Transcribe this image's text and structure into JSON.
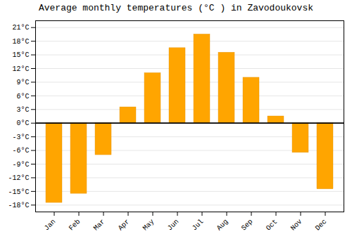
{
  "chart_data": {
    "type": "bar",
    "title": "Average monthly temperatures (°C ) in Zavodoukovsk",
    "categories": [
      "Jan",
      "Feb",
      "Mar",
      "Apr",
      "May",
      "Jun",
      "Jul",
      "Aug",
      "Sep",
      "Oct",
      "Nov",
      "Dec"
    ],
    "values": [
      -17.5,
      -15.5,
      -7.0,
      3.5,
      11.0,
      16.5,
      19.5,
      15.5,
      10.0,
      1.5,
      -6.5,
      -14.5
    ],
    "color": "#FFA500",
    "ylim": [
      -19.5,
      22.5
    ],
    "yticks": [
      {
        "value": -18,
        "label": "-18°C"
      },
      {
        "value": -15,
        "label": "-15°C"
      },
      {
        "value": -12,
        "label": "-12°C"
      },
      {
        "value": -9,
        "label": "-9°C"
      },
      {
        "value": -6,
        "label": "-6°C"
      },
      {
        "value": -3,
        "label": "-3°C"
      },
      {
        "value": 0,
        "label": "0°C"
      },
      {
        "value": 3,
        "label": "3°C"
      },
      {
        "value": 6,
        "label": "6°C"
      },
      {
        "value": 9,
        "label": "9°C"
      },
      {
        "value": 12,
        "label": "12°C"
      },
      {
        "value": 15,
        "label": "15°C"
      },
      {
        "value": 18,
        "label": "18°C"
      },
      {
        "value": 21,
        "label": "21°C"
      }
    ],
    "grid": true
  }
}
